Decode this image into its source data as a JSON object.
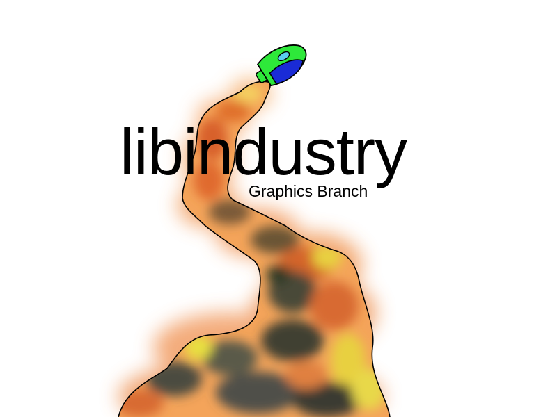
{
  "logo": {
    "title": "libindustry",
    "subtitle": "Graphics Branch"
  },
  "icons": {
    "rocket": "rocket-icon",
    "smoke": "smoke-trail"
  },
  "colors": {
    "text": "#000000",
    "background": "#ffffff",
    "rocket_body": "#2ee83a",
    "rocket_window": "#1a2bd6",
    "smoke_orange": "#f08a3c",
    "smoke_yellow": "#e8e03a",
    "smoke_dark": "#3a3a30"
  }
}
